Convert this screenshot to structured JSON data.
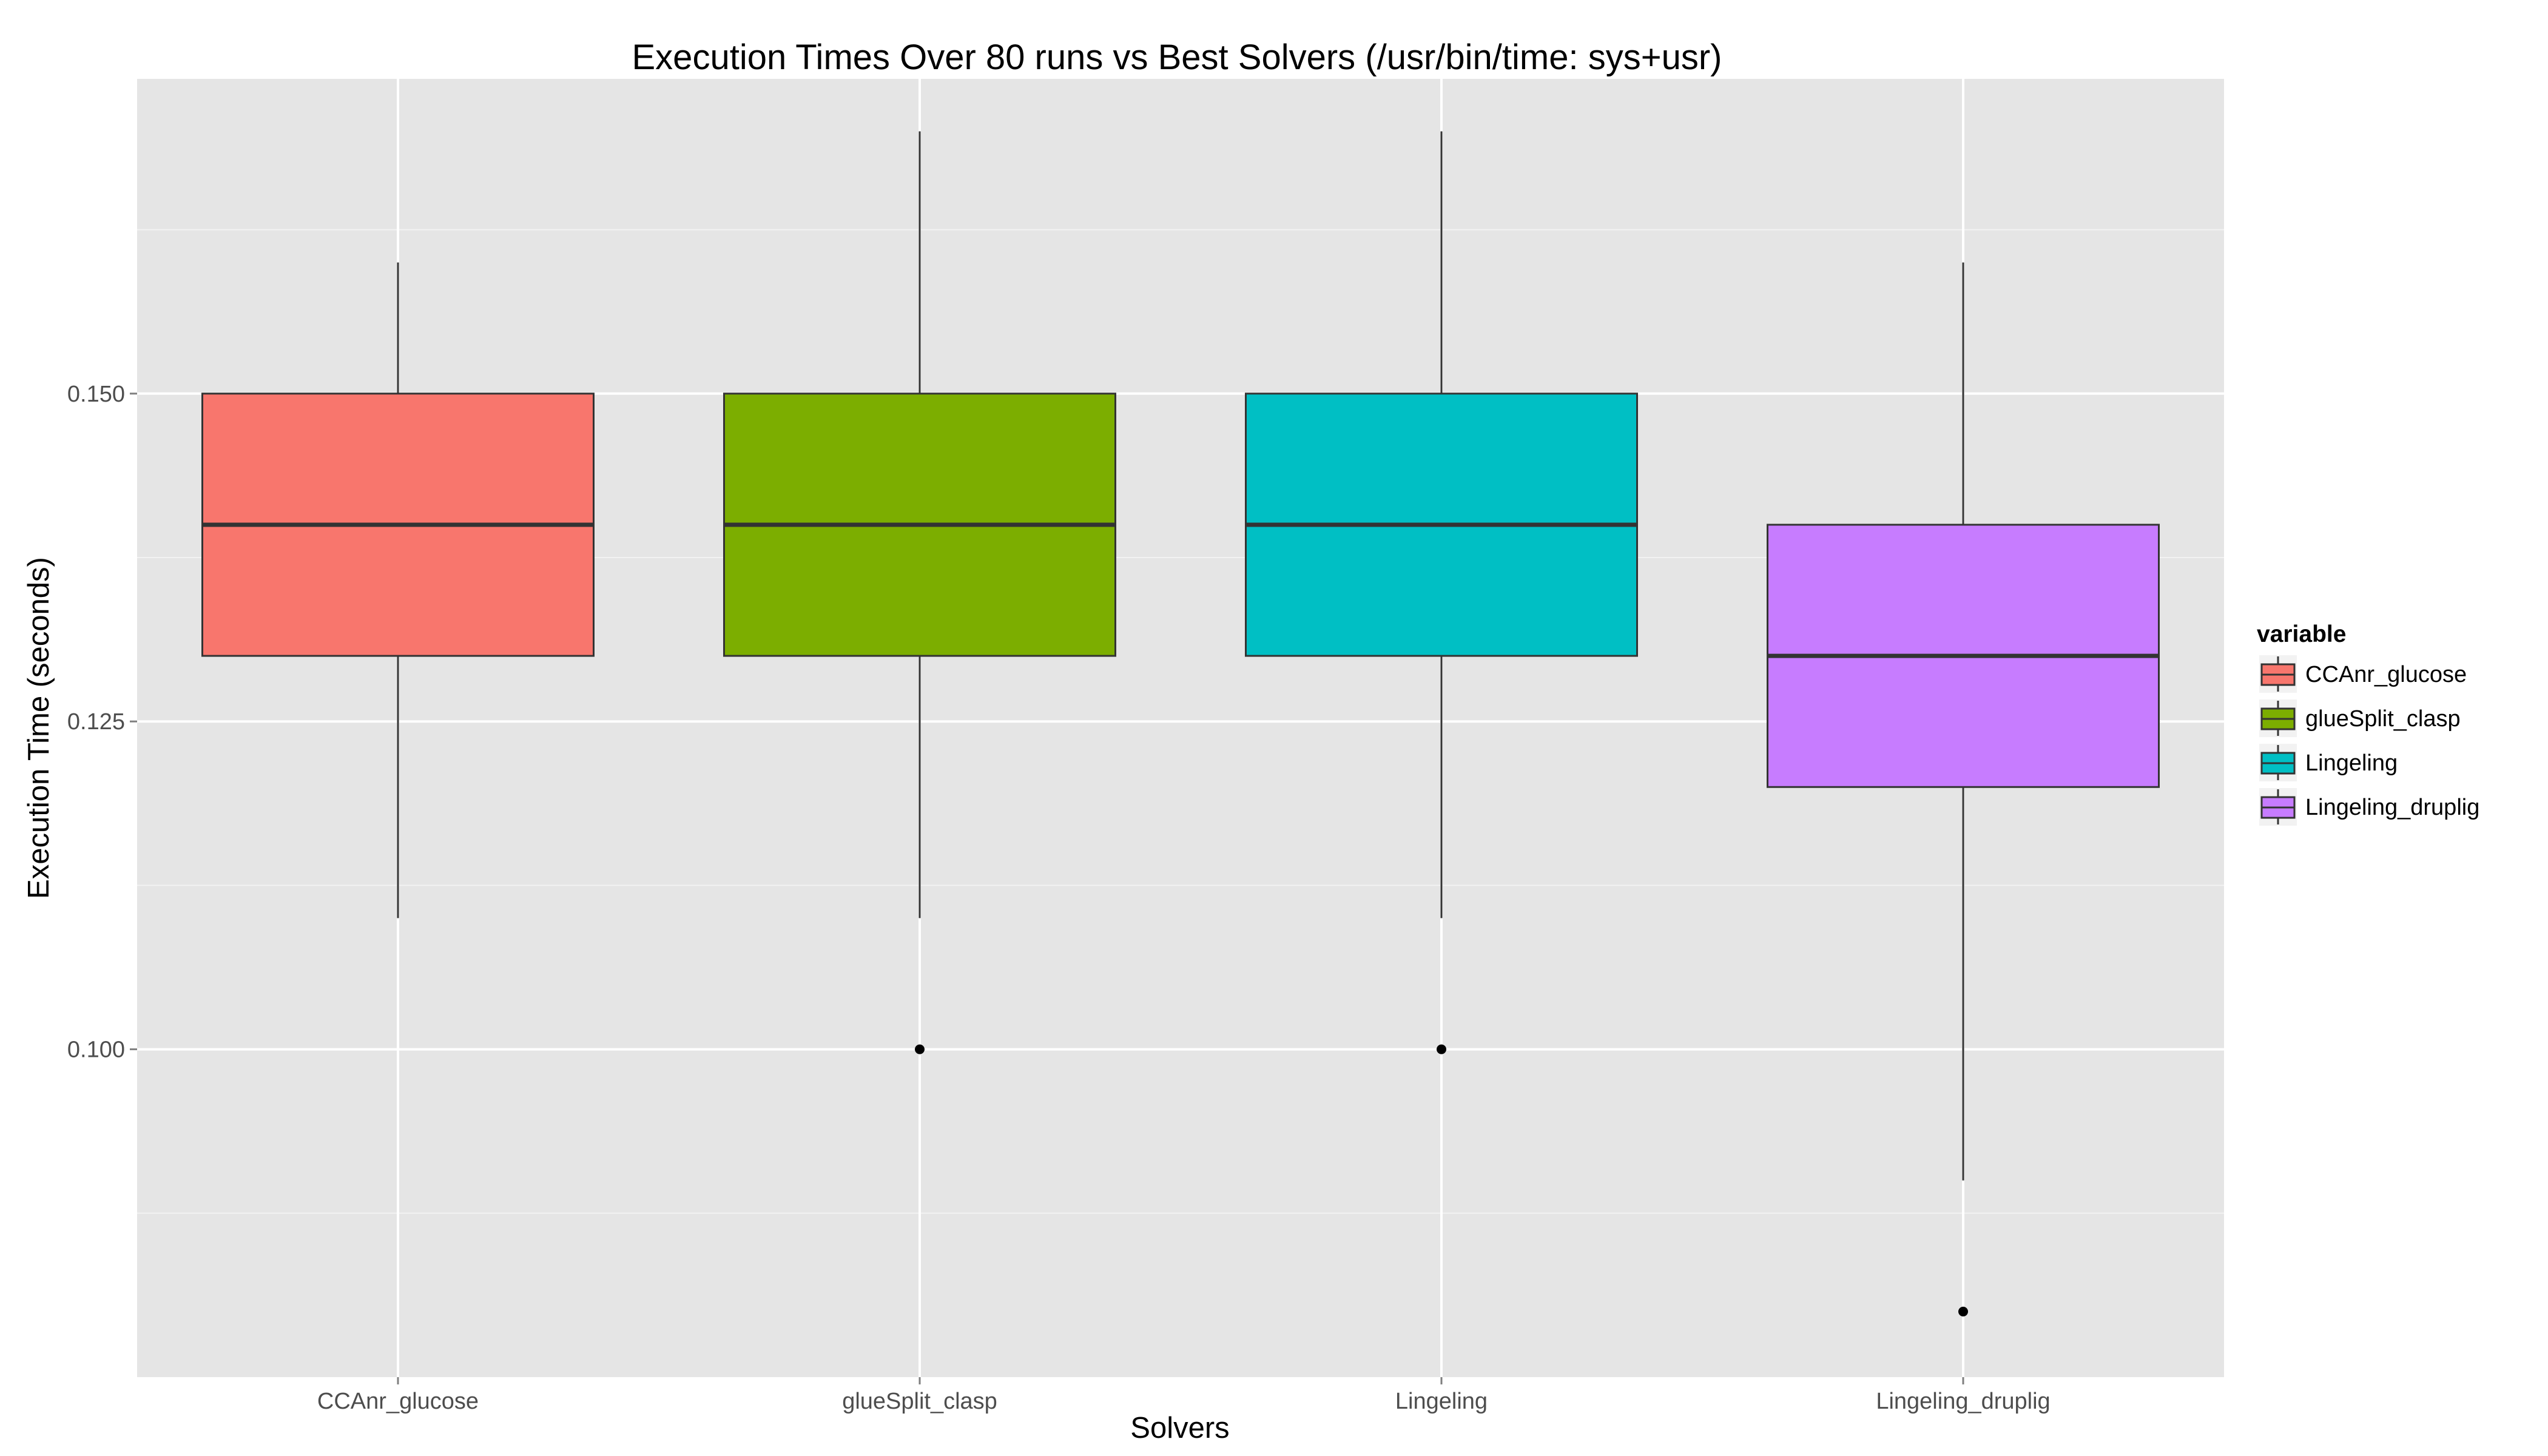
{
  "chart_data": {
    "type": "box",
    "title": "Execution Times Over 80 runs vs Best Solvers (/usr/bin/time: sys+usr)",
    "xlabel": "Solvers",
    "ylabel": "Execution Time (seconds)",
    "ylim": [
      0.075,
      0.174
    ],
    "yticks": [
      0.1,
      0.125,
      0.15
    ],
    "ytick_labels": [
      "0.100",
      "0.125",
      "0.150"
    ],
    "grid": true,
    "legend": {
      "title": "variable",
      "position": "right"
    },
    "categories": [
      "CCAnr_glucose",
      "glueSplit_clasp",
      "Lingeling",
      "Lingeling_druplig"
    ],
    "series": [
      {
        "name": "CCAnr_glucose",
        "color": "#F8766D",
        "whisker_low": 0.11,
        "q1": 0.13,
        "median": 0.14,
        "q3": 0.15,
        "whisker_high": 0.16,
        "outliers": []
      },
      {
        "name": "glueSplit_clasp",
        "color": "#7CAE00",
        "whisker_low": 0.11,
        "q1": 0.13,
        "median": 0.14,
        "q3": 0.15,
        "whisker_high": 0.17,
        "outliers": [
          0.1
        ]
      },
      {
        "name": "Lingeling",
        "color": "#00BFC4",
        "whisker_low": 0.11,
        "q1": 0.13,
        "median": 0.14,
        "q3": 0.15,
        "whisker_high": 0.17,
        "outliers": [
          0.1
        ]
      },
      {
        "name": "Lingeling_druplig",
        "color": "#C77CFF",
        "whisker_low": 0.09,
        "q1": 0.12,
        "median": 0.13,
        "q3": 0.14,
        "whisker_high": 0.16,
        "outliers": [
          0.08
        ]
      }
    ]
  }
}
